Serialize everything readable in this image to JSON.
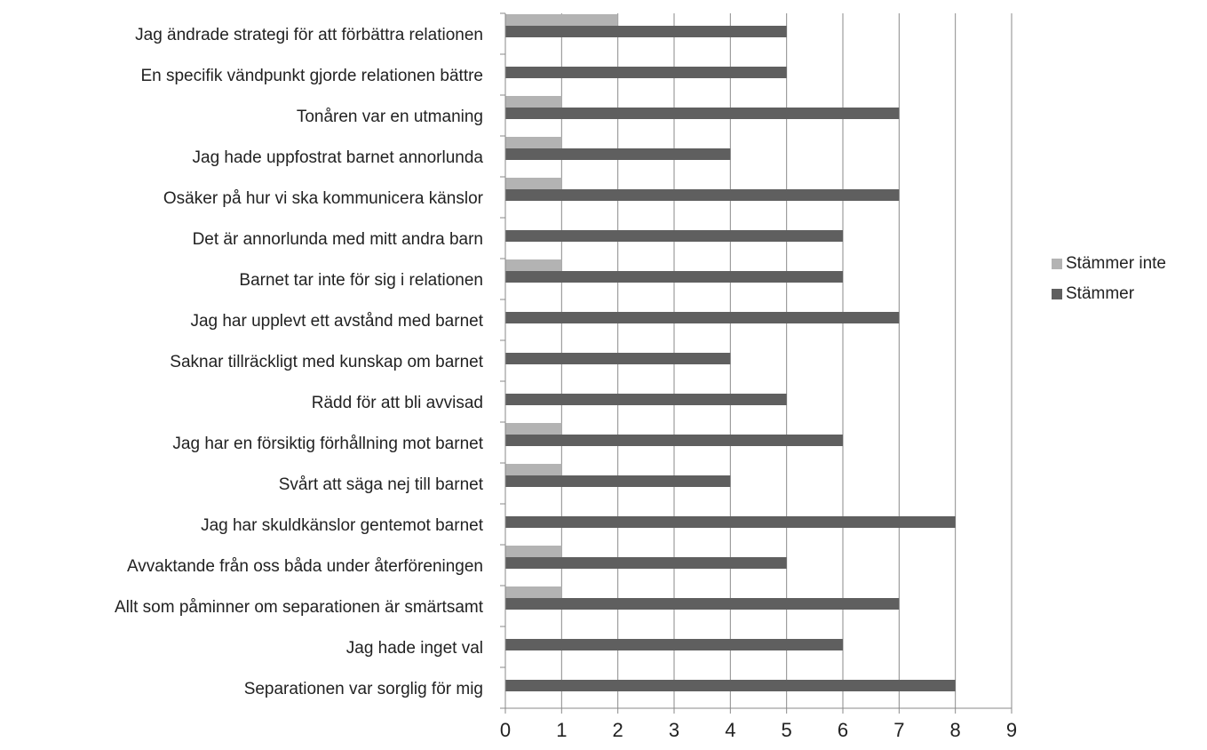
{
  "chart_data": {
    "type": "bar",
    "orientation": "horizontal",
    "categories": [
      "Jag ändrade strategi för att förbättra relationen",
      "En specifik vändpunkt gjorde relationen bättre",
      "Tonåren var en utmaning",
      "Jag hade uppfostrat barnet annorlunda",
      "Osäker på hur vi ska kommunicera känslor",
      "Det är annorlunda med mitt andra barn",
      "Barnet tar inte för sig i relationen",
      "Jag har upplevt ett avstånd med barnet",
      "Saknar tillräckligt med kunskap om barnet",
      "Rädd för att bli avvisad",
      "Jag har en försiktig förhållning mot barnet",
      "Svårt att säga nej till barnet",
      "Jag har skuldkänslor gentemot barnet",
      "Avvaktande från oss båda under återföreningen",
      "Allt som påminner om separationen är smärtsamt",
      "Jag hade inget val",
      "Separationen var sorglig för mig"
    ],
    "series": [
      {
        "name": "Stämmer inte",
        "color": "#b3b3b3",
        "values": [
          2,
          0,
          1,
          1,
          1,
          0,
          1,
          0,
          0,
          0,
          1,
          1,
          0,
          1,
          1,
          0,
          0
        ]
      },
      {
        "name": "Stämmer",
        "color": "#5f5f5f",
        "values": [
          5,
          5,
          7,
          4,
          7,
          6,
          6,
          7,
          4,
          5,
          6,
          4,
          8,
          5,
          7,
          6,
          8
        ]
      }
    ],
    "xlim": [
      0,
      9
    ],
    "xticks": [
      "0",
      "1",
      "2",
      "3",
      "4",
      "5",
      "6",
      "7",
      "8",
      "9"
    ],
    "grid": "vertical",
    "legend": "right",
    "title": "",
    "xlabel": "",
    "ylabel": ""
  }
}
